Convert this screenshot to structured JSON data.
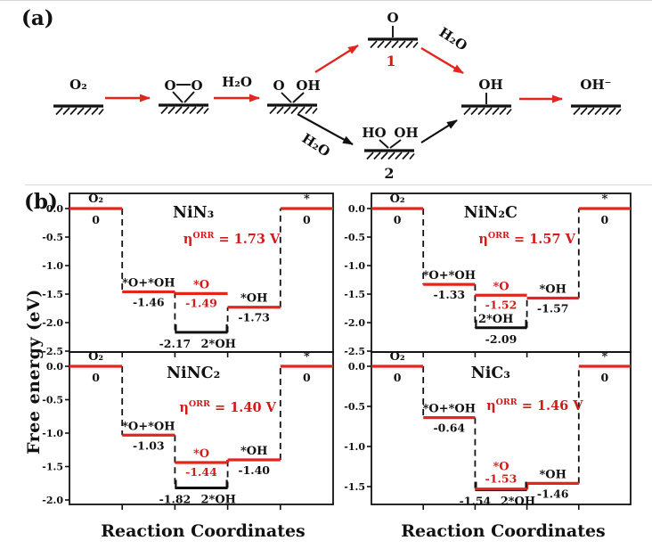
{
  "figure": {
    "panel_a_label": "(a)",
    "panel_b_label": "(b)"
  },
  "scheme": {
    "o2_gas": "O₂",
    "o2_ads_left": "O",
    "o2_ads_right": "O",
    "h2o_step1": "H₂O",
    "ooh_left": "O",
    "ooh_right": "OH",
    "state1_atom": "O",
    "state1_number": "1",
    "h2o_state1": "H₂O",
    "state2_left": "HO",
    "state2_right": "OH",
    "state2_number": "2",
    "h2o_state2": "H₂O",
    "oh_adsorbed": "OH",
    "oh_minus": "OH⁻"
  },
  "axes": {
    "ylabel": "Free energy (eV)",
    "xlabel_left": "Reaction Coordinates",
    "xlabel_right": "Reaction Coordinates"
  },
  "colors": {
    "line_red": "#e2261f",
    "text_red": "#cf1d1c",
    "ink": "#111111"
  },
  "chart_data": [
    {
      "type": "step-energy-diagram",
      "title": "NiN₃",
      "eta": {
        "symbol": "η",
        "sup": "ORR",
        "rest": "= 1.73 V"
      },
      "states": [
        "O₂",
        "*O+*OH",
        "*O",
        "*OH",
        "*"
      ],
      "values": [
        0,
        -1.46,
        -1.49,
        -1.73,
        0
      ],
      "value_labels": [
        "0",
        "-1.46",
        "-1.49",
        "-1.73",
        "0"
      ],
      "highlight_state_index": 2,
      "highlight_value_pos": "below",
      "alt": {
        "state": "2*OH",
        "value": -2.17,
        "value_label": "-2.17",
        "label_layout": "below-split"
      },
      "yticks": [
        "0.0",
        "-0.5",
        "-1.0",
        "-1.5",
        "-2.0",
        "-2.5"
      ],
      "ylim": [
        0.27,
        -2.5
      ],
      "xlabel": "Reaction Coordinates",
      "ylabel": "Free energy (eV)"
    },
    {
      "type": "step-energy-diagram",
      "title": "NiN₂C",
      "eta": {
        "symbol": "η",
        "sup": "ORR",
        "rest": "= 1.57 V"
      },
      "states": [
        "O₂",
        "*O+*OH",
        "*O",
        "*OH",
        "*"
      ],
      "values": [
        0,
        -1.33,
        -1.52,
        -1.57,
        0
      ],
      "value_labels": [
        "0",
        "-1.33",
        "-1.52",
        "-1.57",
        "0"
      ],
      "highlight_state_index": 2,
      "highlight_value_pos": "below",
      "alt": {
        "state": "2*OH",
        "value": -2.09,
        "value_label": "-2.09",
        "label_layout": "above-below"
      },
      "yticks": [
        "0.0",
        "-0.5",
        "-1.0",
        "-1.5",
        "-2.0",
        "-2.5"
      ],
      "ylim": [
        0.27,
        -2.5
      ],
      "xlabel": "Reaction Coordinates",
      "ylabel": "Free energy (eV)"
    },
    {
      "type": "step-energy-diagram",
      "title": "NiNC₂",
      "eta": {
        "symbol": "η",
        "sup": "ORR",
        "rest": "= 1.40 V"
      },
      "states": [
        "O₂",
        "*O+*OH",
        "*O",
        "*OH",
        "*"
      ],
      "values": [
        0,
        -1.03,
        -1.44,
        -1.4,
        0
      ],
      "value_labels": [
        "0",
        "-1.03",
        "-1.44",
        "-1.40",
        "0"
      ],
      "highlight_state_index": 2,
      "highlight_value_pos": "below",
      "alt": {
        "state": "2*OH",
        "value": -1.82,
        "value_label": "-1.82",
        "label_layout": "below-split"
      },
      "yticks": [
        "0.0",
        "-0.5",
        "-1.0",
        "-1.5",
        "-2.0"
      ],
      "ylim": [
        0.21,
        -2.07
      ],
      "xlabel": "Reaction Coordinates",
      "ylabel": "Free energy (eV)"
    },
    {
      "type": "step-energy-diagram",
      "title": "NiC₃",
      "eta": {
        "symbol": "η",
        "sup": "ORR",
        "rest": "= 1.46 V"
      },
      "states": [
        "O₂",
        "*O+*OH",
        "*O",
        "*OH",
        "*"
      ],
      "values": [
        0,
        -0.64,
        -1.53,
        -1.46,
        0
      ],
      "value_labels": [
        "0",
        "-0.64",
        "-1.53",
        "-1.46",
        "0"
      ],
      "highlight_state_index": 2,
      "highlight_value_pos": "above",
      "alt": {
        "state": "2*OH",
        "value": -1.54,
        "value_label": "-1.54",
        "label_layout": "below-split"
      },
      "yticks": [
        "0.0",
        "-0.5",
        "-1.0",
        "-1.5"
      ],
      "ylim": [
        0.18,
        -1.72
      ],
      "xlabel": "Reaction Coordinates",
      "ylabel": "Free energy (eV)"
    }
  ]
}
